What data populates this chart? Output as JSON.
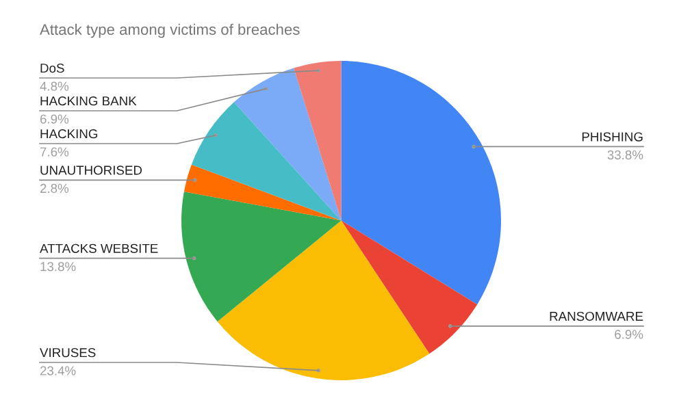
{
  "chart_data": {
    "type": "pie",
    "title": "Attack type among victims of breaches",
    "categories": [
      "PHISHING",
      "RANSOMWARE",
      "VIRUSES",
      "ATTACKS WEBSITE",
      "UNAUTHORISED",
      "HACKING",
      "HACKING BANK",
      "DoS"
    ],
    "values": [
      33.8,
      6.9,
      23.4,
      13.8,
      2.8,
      7.6,
      6.9,
      4.8
    ],
    "colors": [
      "#4285f4",
      "#ea4335",
      "#fbbc04",
      "#34a853",
      "#ff6d01",
      "#46bdc6",
      "#7baaf7",
      "#f07b72"
    ],
    "value_labels": [
      "33.8%",
      "6.9%",
      "23.4%",
      "13.8%",
      "2.8%",
      "7.6%",
      "6.9%",
      "4.8%"
    ],
    "legend": false
  }
}
